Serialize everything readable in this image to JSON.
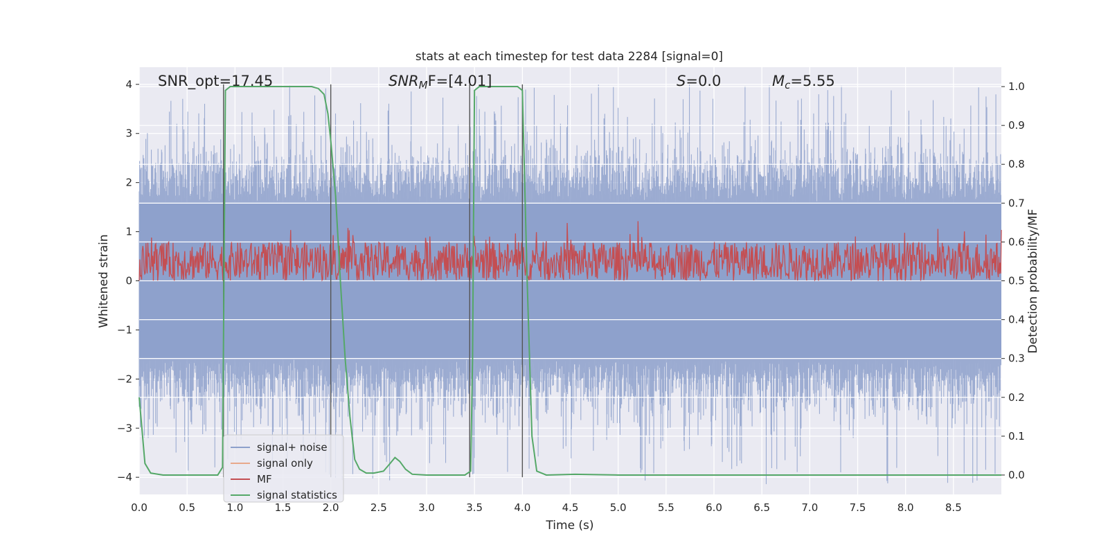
{
  "chart_data": {
    "type": "line",
    "title": "stats at each timestep for test data 2284 [signal=0]",
    "xlabel": "Time (s)",
    "ylabel_left": "Whitened strain",
    "ylabel_right": "Detection probability/MF",
    "xlim": [
      0,
      9.0
    ],
    "ylim_left": [
      -4.35,
      4.35
    ],
    "ylim_right": [
      -0.05,
      1.05
    ],
    "x_ticks": [
      0.0,
      0.5,
      1.0,
      1.5,
      2.0,
      2.5,
      3.0,
      3.5,
      4.0,
      4.5,
      5.0,
      5.5,
      6.0,
      6.5,
      7.0,
      7.5,
      8.0,
      8.5
    ],
    "x_tick_labels": [
      "0.0",
      "0.5",
      "1.0",
      "1.5",
      "2.0",
      "2.5",
      "3.0",
      "3.5",
      "4.0",
      "4.5",
      "5.0",
      "5.5",
      "6.0",
      "6.5",
      "7.0",
      "7.5",
      "8.0",
      "8.5"
    ],
    "y_ticks_left": [
      -4,
      -3,
      -2,
      -1,
      0,
      1,
      2,
      3,
      4
    ],
    "y_tick_labels_left": [
      "−4",
      "−3",
      "−2",
      "−1",
      "0",
      "1",
      "2",
      "3",
      "4"
    ],
    "y_ticks_right": [
      0.0,
      0.1,
      0.2,
      0.3,
      0.4,
      0.5,
      0.6,
      0.7,
      0.8,
      0.9,
      1.0
    ],
    "y_tick_labels_right": [
      "0.0",
      "0.1",
      "0.2",
      "0.3",
      "0.4",
      "0.5",
      "0.6",
      "0.7",
      "0.8",
      "0.9",
      "1.0"
    ],
    "grid": true,
    "annotations": {
      "snr_opt": "SNR_opt=17.45",
      "snr_mf_symbol": "SNR",
      "snr_mf_sub": "M",
      "snr_mf_rest": "F=[4.01]",
      "s_symbol": "S",
      "s_value": "=0.0",
      "mc_symbol": "M",
      "mc_sub": "c",
      "mc_value": "=5.55"
    },
    "legend": {
      "placement": "lower-left",
      "entries": [
        {
          "label": "signal+ noise",
          "color": "#8da0cb"
        },
        {
          "label": "signal only",
          "color": "#e8a88a"
        },
        {
          "label": "MF",
          "color": "#c44e52"
        },
        {
          "label": "signal statistics",
          "color": "#55a868"
        }
      ]
    },
    "vertical_lines_x": [
      0.88,
      2.0,
      3.45,
      4.0
    ],
    "vertical_lines_range_left": [
      -4,
      4
    ],
    "noise_series": {
      "name": "signal+ noise",
      "color": "#8da0cb",
      "x_range": [
        0,
        9.0
      ],
      "approx_amplitude": 1.6,
      "approx_peak": 4.0
    },
    "mf_series": {
      "name": "MF",
      "color": "#c44e52",
      "axis": "right",
      "approx_range": [
        0.5,
        0.6
      ]
    },
    "signal_statistics": {
      "name": "signal statistics",
      "color": "#55a868",
      "axis": "right",
      "x": [
        0.0,
        0.06,
        0.12,
        0.25,
        0.5,
        0.82,
        0.87,
        0.9,
        0.95,
        1.0,
        1.5,
        1.8,
        1.87,
        1.93,
        1.97,
        2.0,
        2.05,
        2.1,
        2.15,
        2.2,
        2.25,
        2.3,
        2.37,
        2.45,
        2.55,
        2.62,
        2.67,
        2.72,
        2.78,
        2.85,
        3.0,
        3.4,
        3.46,
        3.48,
        3.5,
        3.55,
        3.9,
        3.95,
        4.0,
        4.05,
        4.1,
        4.15,
        4.25,
        4.55,
        5.0,
        9.0
      ],
      "y": [
        0.2,
        0.03,
        0.005,
        0.0,
        0.0,
        0.0,
        0.02,
        0.99,
        1.0,
        1.0,
        1.0,
        1.0,
        0.995,
        0.98,
        0.93,
        0.86,
        0.72,
        0.5,
        0.3,
        0.15,
        0.04,
        0.015,
        0.005,
        0.005,
        0.01,
        0.03,
        0.045,
        0.035,
        0.015,
        0.002,
        0.0,
        0.0,
        0.01,
        0.3,
        0.99,
        1.0,
        1.0,
        1.0,
        0.99,
        0.5,
        0.1,
        0.01,
        0.0,
        0.002,
        0.0,
        0.0
      ]
    }
  }
}
